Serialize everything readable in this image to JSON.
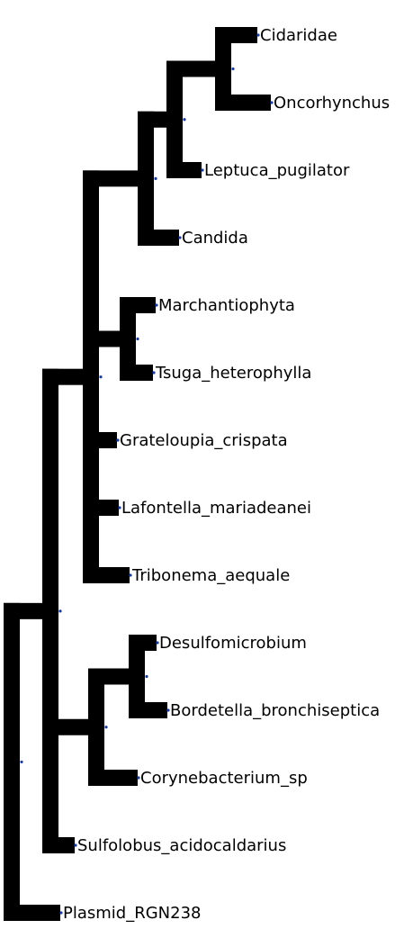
{
  "tree": {
    "line_color": "#000000",
    "node_color": "#1a3a9c",
    "leaves": [
      {
        "id": "cidaridae",
        "label": "Cidaridae"
      },
      {
        "id": "oncorhynchus",
        "label": "Oncorhynchus"
      },
      {
        "id": "leptuca",
        "label": "Leptuca_pugilator"
      },
      {
        "id": "candida",
        "label": "Candida"
      },
      {
        "id": "marchantiophyta",
        "label": "Marchantiophyta"
      },
      {
        "id": "tsuga",
        "label": "Tsuga_heterophylla"
      },
      {
        "id": "grateloupia",
        "label": "Grateloupia_crispata"
      },
      {
        "id": "lafontella",
        "label": "Lafontella_mariadeanei"
      },
      {
        "id": "tribonema",
        "label": "Tribonema_aequale"
      },
      {
        "id": "desulfomicrobium",
        "label": "Desulfomicrobium"
      },
      {
        "id": "bordetella",
        "label": "Bordetella_bronchiseptica"
      },
      {
        "id": "corynebacterium",
        "label": "Corynebacterium_sp"
      },
      {
        "id": "sulfolobus",
        "label": "Sulfolobus_acidocaldarius"
      },
      {
        "id": "plasmid",
        "label": "Plasmid_RGN238"
      }
    ]
  }
}
